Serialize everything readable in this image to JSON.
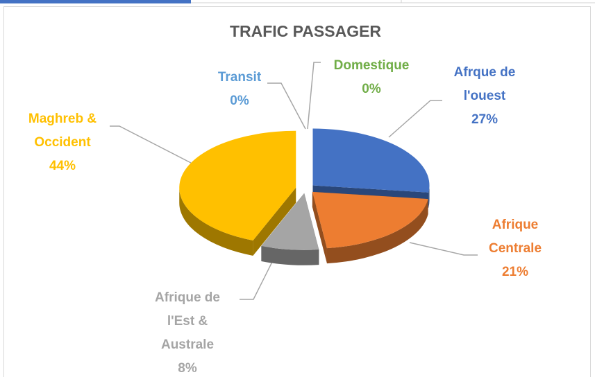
{
  "chart_data": {
    "type": "pie3d",
    "title": "TRAFIC PASSAGER",
    "categories": [
      "Domestique",
      "Afrque de l'ouest",
      "Afrique Centrale",
      "Afrique de l'Est & Australe",
      "Maghreb & Occident",
      "Transit"
    ],
    "values": [
      0,
      27,
      21,
      8,
      44,
      0
    ],
    "value_labels": [
      "0%",
      "27%",
      "21%",
      "8%",
      "44%",
      "0%"
    ],
    "colors": [
      "#70ad47",
      "#4472c4",
      "#ed7d31",
      "#a5a5a5",
      "#ffc000",
      "#5b9bd5"
    ]
  }
}
